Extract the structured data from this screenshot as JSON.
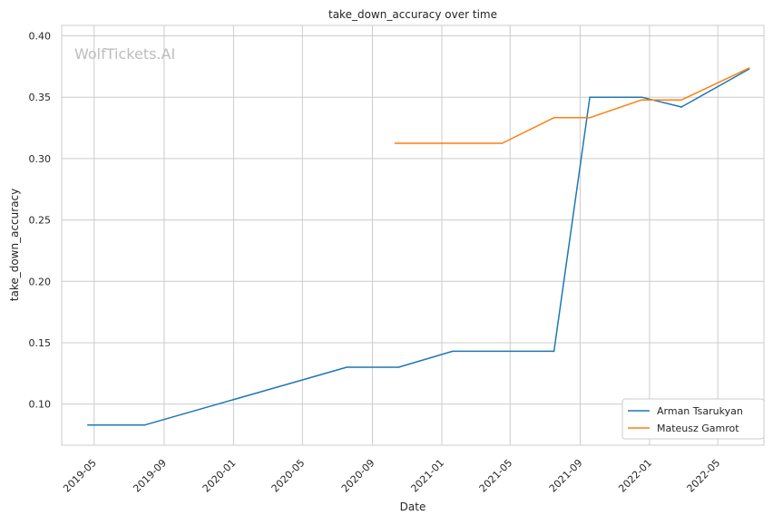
{
  "chart_data": {
    "type": "line",
    "title": "take_down_accuracy over time",
    "xlabel": "Date",
    "ylabel": "take_down_accuracy",
    "watermark": "WolfTickets.AI",
    "x_ticks": [
      "2019-05",
      "2019-09",
      "2020-01",
      "2020-05",
      "2020-09",
      "2021-01",
      "2021-05",
      "2021-09",
      "2022-01",
      "2022-05"
    ],
    "y_ticks": [
      "0.10",
      "0.15",
      "0.20",
      "0.25",
      "0.30",
      "0.35",
      "0.40"
    ],
    "xlim": [
      "2019-03-05",
      "2022-07-21"
    ],
    "ylim": [
      0.0665,
      0.4085
    ],
    "grid": true,
    "legend_position": "bottom-right",
    "series": [
      {
        "name": "Arman Tsarukyan",
        "color": "#1f77b4",
        "x": [
          "2019-04-20",
          "2019-07-29",
          "2020-07-18",
          "2020-10-17",
          "2021-01-20",
          "2021-07-17",
          "2021-09-18",
          "2021-12-18",
          "2022-02-26",
          "2022-06-25"
        ],
        "y": [
          0.083,
          0.083,
          0.13,
          0.13,
          0.143,
          0.143,
          0.35,
          0.35,
          0.342,
          0.373
        ]
      },
      {
        "name": "Mateusz Gamrot",
        "color": "#ff7f0e",
        "x": [
          "2020-10-11",
          "2021-01-02",
          "2021-04-17",
          "2021-07-17",
          "2021-09-18",
          "2021-12-18",
          "2022-02-26",
          "2022-06-25"
        ],
        "y": [
          0.3125,
          0.3125,
          0.3125,
          0.3333,
          0.3333,
          0.3478,
          0.3478,
          0.3737
        ]
      }
    ]
  }
}
